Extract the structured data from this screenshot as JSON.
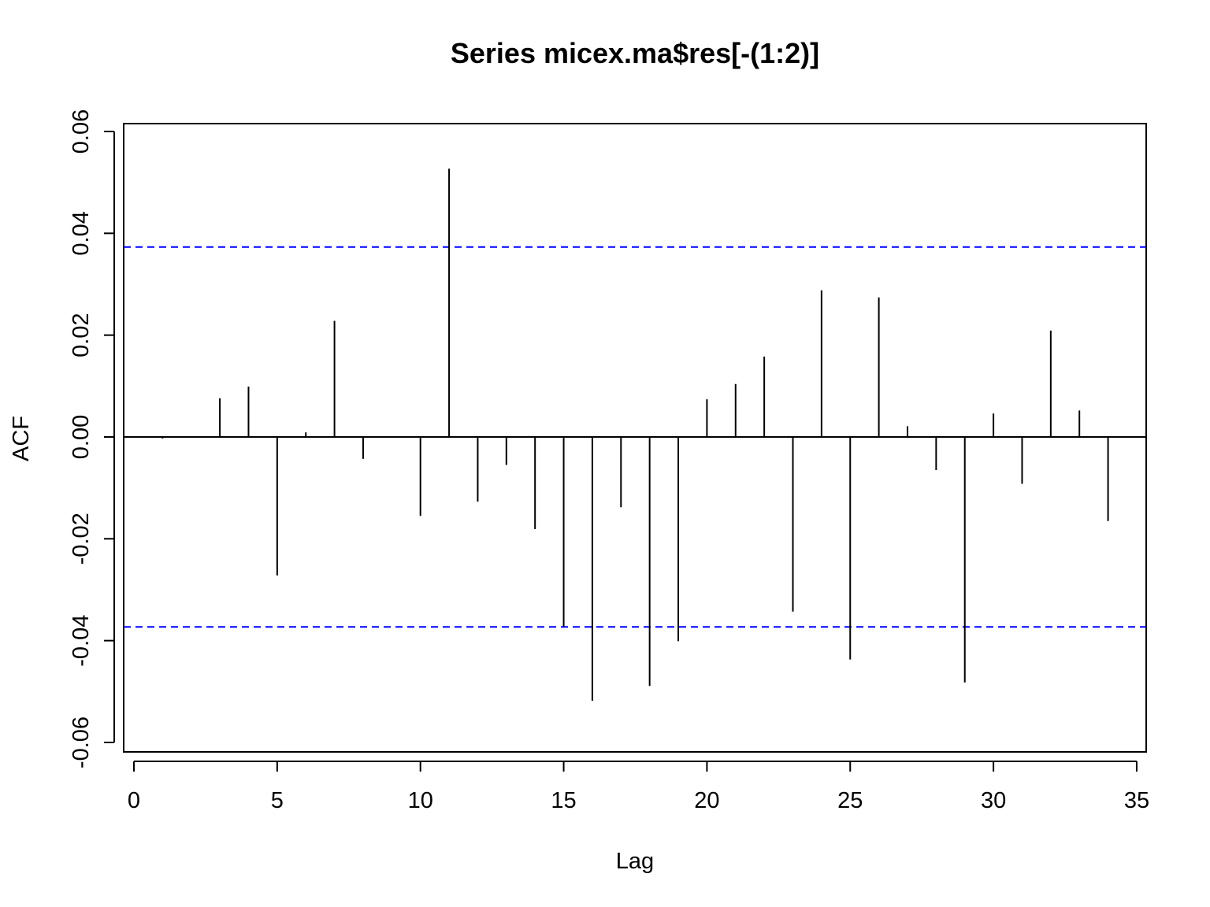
{
  "chart_data": {
    "type": "bar",
    "title": "Series  micex.ma$res[-(1:2)]",
    "xlabel": "Lag",
    "ylabel": "ACF",
    "xlim": [
      0,
      35
    ],
    "ylim": [
      -0.06,
      0.06
    ],
    "x_ticks": [
      0,
      5,
      10,
      15,
      20,
      25,
      30,
      35
    ],
    "x_tick_labels": [
      "0",
      "5",
      "10",
      "15",
      "20",
      "25",
      "30",
      "35"
    ],
    "y_ticks": [
      -0.06,
      -0.04,
      -0.02,
      0.0,
      0.02,
      0.04,
      0.06
    ],
    "y_tick_labels": [
      "-0.06",
      "-0.04",
      "-0.02",
      "0.00",
      "0.02",
      "0.04",
      "0.06"
    ],
    "grid": false,
    "lags": [
      1,
      2,
      3,
      4,
      5,
      6,
      7,
      8,
      9,
      10,
      11,
      12,
      13,
      14,
      15,
      16,
      17,
      18,
      19,
      20,
      21,
      22,
      23,
      24,
      25,
      26,
      27,
      28,
      29,
      30,
      31,
      32,
      33,
      34
    ],
    "values": [
      -0.0003,
      0.0,
      0.0076,
      0.0099,
      -0.0272,
      0.0009,
      0.0228,
      -0.0043,
      0.0,
      -0.0155,
      0.0527,
      -0.0127,
      -0.0055,
      -0.0181,
      -0.0372,
      -0.0518,
      -0.0138,
      -0.0489,
      -0.0401,
      0.0074,
      0.0104,
      0.0158,
      -0.0343,
      0.0288,
      -0.0437,
      0.0274,
      0.0021,
      -0.0065,
      -0.0482,
      0.0046,
      -0.0092,
      0.0209,
      0.0052,
      -0.0165
    ],
    "conf_bounds": [
      0.0373,
      -0.0373
    ],
    "colors": {
      "bars": "#000000",
      "bounds": "#0000ff",
      "axes": "#000000"
    }
  }
}
